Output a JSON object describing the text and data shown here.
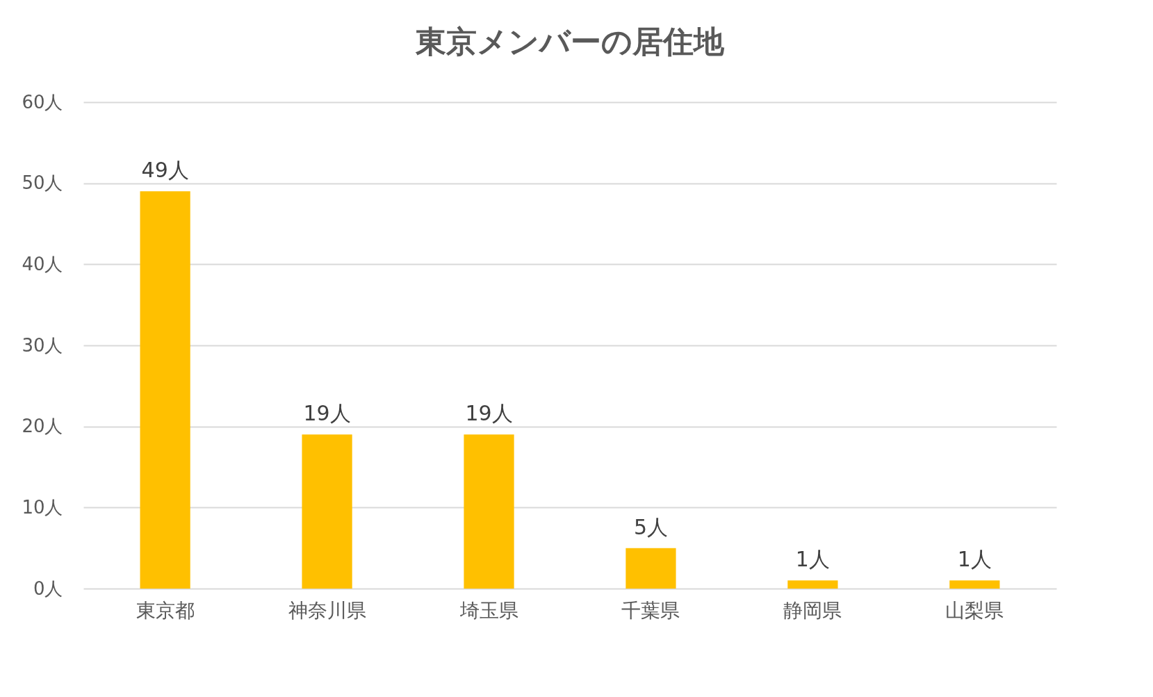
{
  "chart_data": {
    "type": "bar",
    "title": "東京メンバーの居住地",
    "categories": [
      "東京都",
      "神奈川県",
      "埼玉県",
      "千葉県",
      "静岡県",
      "山梨県"
    ],
    "values": [
      49,
      19,
      19,
      5,
      1,
      1
    ],
    "value_labels": [
      "49人",
      "19人",
      "19人",
      "5人",
      "1人",
      "1人"
    ],
    "color": "#ffc000",
    "ylim": [
      0,
      60
    ],
    "yticks": [
      {
        "value": 0,
        "label": "0人"
      },
      {
        "value": 10,
        "label": "10人"
      },
      {
        "value": 20,
        "label": "20人"
      },
      {
        "value": 30,
        "label": "30人"
      },
      {
        "value": 40,
        "label": "40人"
      },
      {
        "value": 50,
        "label": "50人"
      },
      {
        "value": 60,
        "label": "60人"
      }
    ],
    "grid": "y"
  }
}
